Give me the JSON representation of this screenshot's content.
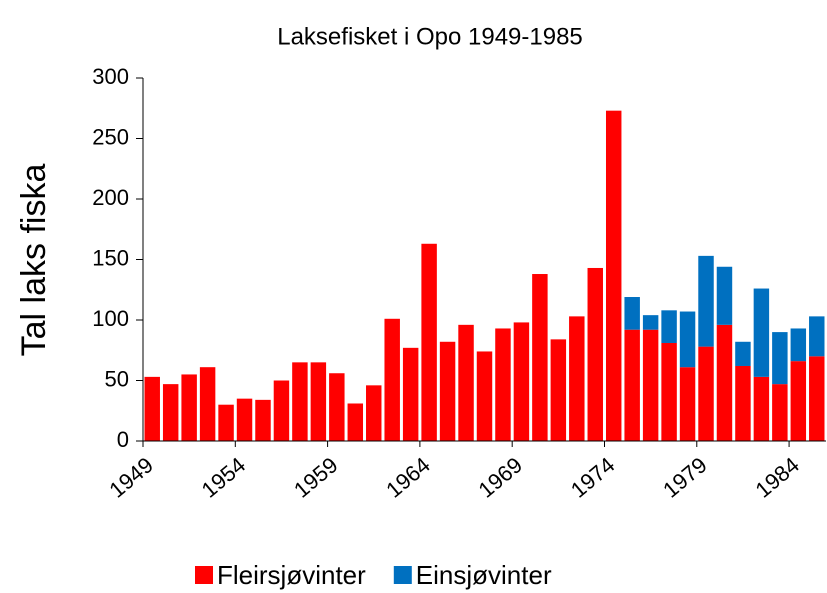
{
  "chart_data": {
    "type": "stacked-bar",
    "title": "Laksefisket i Opo 1949-1985",
    "y_label": "Tal laks fiska",
    "categories": [
      "1949",
      null,
      null,
      null,
      null,
      "1954",
      null,
      null,
      null,
      null,
      "1959",
      null,
      null,
      null,
      null,
      "1964",
      null,
      null,
      null,
      null,
      "1969",
      null,
      null,
      null,
      null,
      "1974",
      null,
      null,
      null,
      null,
      "1979",
      null,
      null,
      null,
      null,
      "1984",
      null
    ],
    "series": [
      {
        "name": "Fleirsjøvinter",
        "color": "#ff0000",
        "values": [
          53,
          47,
          55,
          61,
          30,
          35,
          34,
          50,
          65,
          65,
          56,
          31,
          46,
          101,
          77,
          163,
          82,
          96,
          74,
          93,
          98,
          138,
          84,
          103,
          143,
          273,
          92,
          92,
          81,
          61,
          78,
          96,
          62,
          53,
          47,
          66,
          70
        ]
      },
      {
        "name": "Einsjøvinter",
        "color": "#0070c0",
        "values": [
          null,
          null,
          null,
          null,
          null,
          null,
          null,
          null,
          null,
          null,
          null,
          null,
          null,
          null,
          null,
          null,
          null,
          null,
          null,
          null,
          null,
          null,
          null,
          null,
          null,
          null,
          27,
          12,
          27,
          46,
          75,
          48,
          20,
          73,
          43,
          27,
          33
        ]
      }
    ],
    "ylim": [
      0,
      300
    ],
    "yticks": [
      0,
      50,
      100,
      150,
      200,
      250,
      300
    ],
    "legend": "bottom"
  }
}
